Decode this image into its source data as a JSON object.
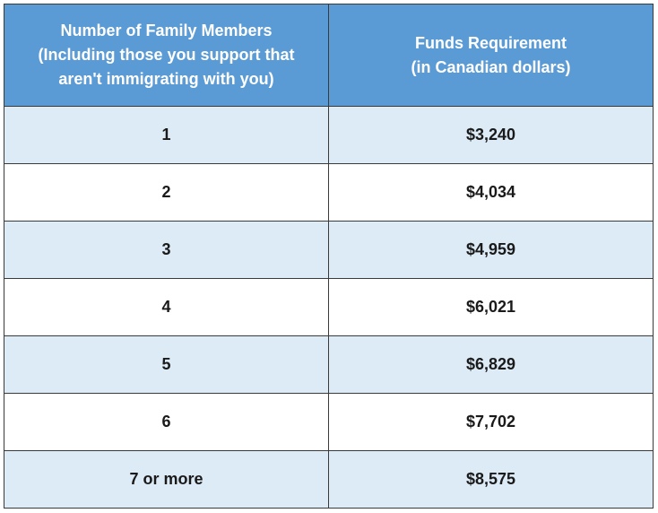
{
  "table": {
    "headers": [
      [
        "Number of Family Members",
        "(Including those you support that",
        "aren't immigrating with you)"
      ],
      [
        "Funds Requirement",
        "(in Canadian dollars)"
      ]
    ],
    "rows": [
      {
        "members": "1",
        "funds": "$3,240"
      },
      {
        "members": "2",
        "funds": "$4,034"
      },
      {
        "members": "3",
        "funds": "$4,959"
      },
      {
        "members": "4",
        "funds": "$6,021"
      },
      {
        "members": "5",
        "funds": "$6,829"
      },
      {
        "members": "6",
        "funds": "$7,702"
      },
      {
        "members": "7 or more",
        "funds": "$8,575"
      }
    ],
    "colors": {
      "header_bg": "#5b9bd5",
      "header_text": "#ffffff",
      "band_bg": "#ddebf7",
      "plain_bg": "#ffffff",
      "border": "#3a3a3a"
    }
  }
}
